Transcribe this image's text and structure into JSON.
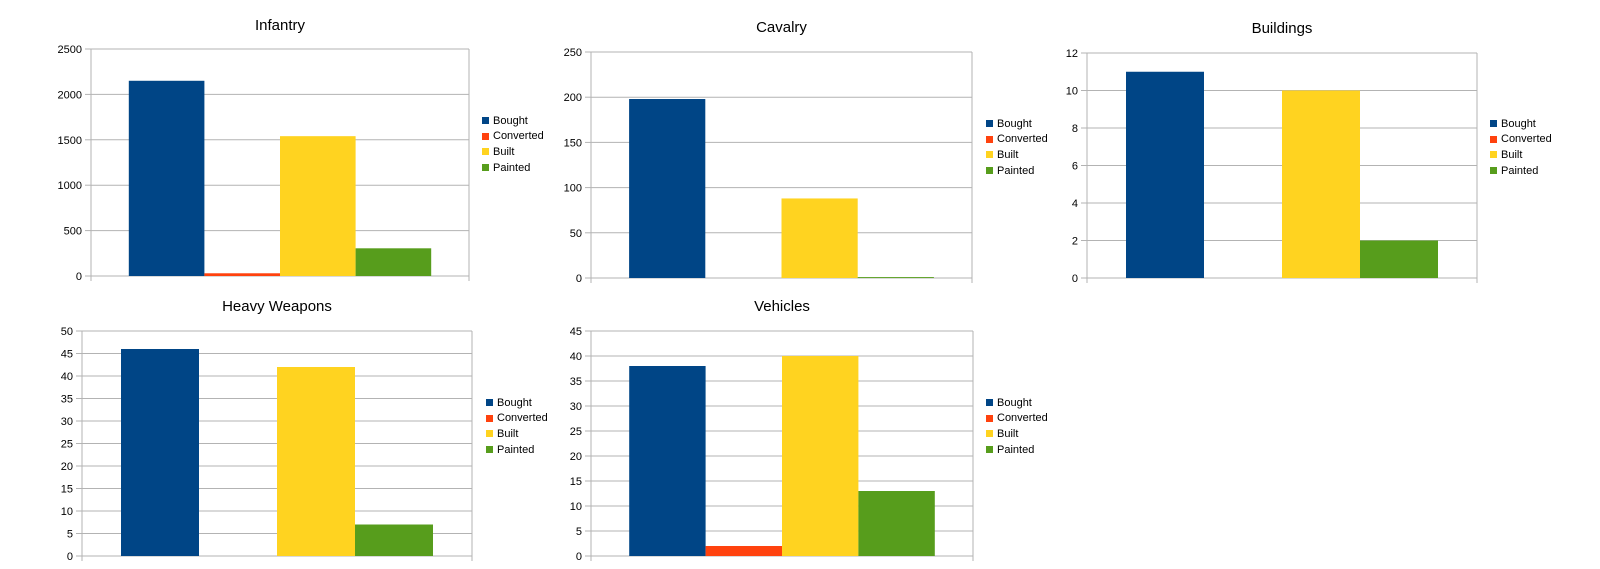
{
  "colors": {
    "Bought": "#004586",
    "Converted": "#ff420e",
    "Built": "#ffd320",
    "Painted": "#579d1c",
    "grid": "#b3b3b3",
    "background": "#ffffff"
  },
  "chart_data": [
    {
      "type": "bar",
      "title": "Infantry",
      "categories": [
        ""
      ],
      "series": [
        {
          "name": "Bought",
          "values": [
            2150
          ]
        },
        {
          "name": "Converted",
          "values": [
            30
          ]
        },
        {
          "name": "Built",
          "values": [
            1540
          ]
        },
        {
          "name": "Painted",
          "values": [
            305
          ]
        }
      ],
      "ylim": [
        0,
        2500
      ],
      "yticks": [
        "0",
        "500",
        "1000",
        "1500",
        "2000",
        "2500"
      ],
      "grid": true,
      "legend": "right"
    },
    {
      "type": "bar",
      "title": "Cavalry",
      "categories": [
        ""
      ],
      "series": [
        {
          "name": "Bought",
          "values": [
            198
          ]
        },
        {
          "name": "Converted",
          "values": [
            0
          ]
        },
        {
          "name": "Built",
          "values": [
            88
          ]
        },
        {
          "name": "Painted",
          "values": [
            1
          ]
        }
      ],
      "ylim": [
        0,
        250
      ],
      "yticks": [
        "0",
        "50",
        "100",
        "150",
        "200",
        "250"
      ],
      "grid": true,
      "legend": "right"
    },
    {
      "type": "bar",
      "title": "Buildings",
      "categories": [
        ""
      ],
      "series": [
        {
          "name": "Bought",
          "values": [
            11
          ]
        },
        {
          "name": "Converted",
          "values": [
            0
          ]
        },
        {
          "name": "Built",
          "values": [
            10
          ]
        },
        {
          "name": "Painted",
          "values": [
            2
          ]
        }
      ],
      "ylim": [
        0,
        12
      ],
      "yticks": [
        "0",
        "2",
        "4",
        "6",
        "8",
        "10",
        "12"
      ],
      "grid": true,
      "legend": "right"
    },
    {
      "type": "bar",
      "title": "Heavy Weapons",
      "categories": [
        ""
      ],
      "series": [
        {
          "name": "Bought",
          "values": [
            46
          ]
        },
        {
          "name": "Converted",
          "values": [
            0
          ]
        },
        {
          "name": "Built",
          "values": [
            42
          ]
        },
        {
          "name": "Painted",
          "values": [
            7
          ]
        }
      ],
      "ylim": [
        0,
        50
      ],
      "yticks": [
        "0",
        "5",
        "10",
        "15",
        "20",
        "25",
        "30",
        "35",
        "40",
        "45",
        "50"
      ],
      "grid": true,
      "legend": "right"
    },
    {
      "type": "bar",
      "title": "Vehicles",
      "categories": [
        ""
      ],
      "series": [
        {
          "name": "Bought",
          "values": [
            38
          ]
        },
        {
          "name": "Converted",
          "values": [
            2
          ]
        },
        {
          "name": "Built",
          "values": [
            40
          ]
        },
        {
          "name": "Painted",
          "values": [
            13
          ]
        }
      ],
      "ylim": [
        0,
        45
      ],
      "yticks": [
        "0",
        "5",
        "10",
        "15",
        "20",
        "25",
        "30",
        "35",
        "40",
        "45"
      ],
      "grid": true,
      "legend": "right"
    }
  ]
}
